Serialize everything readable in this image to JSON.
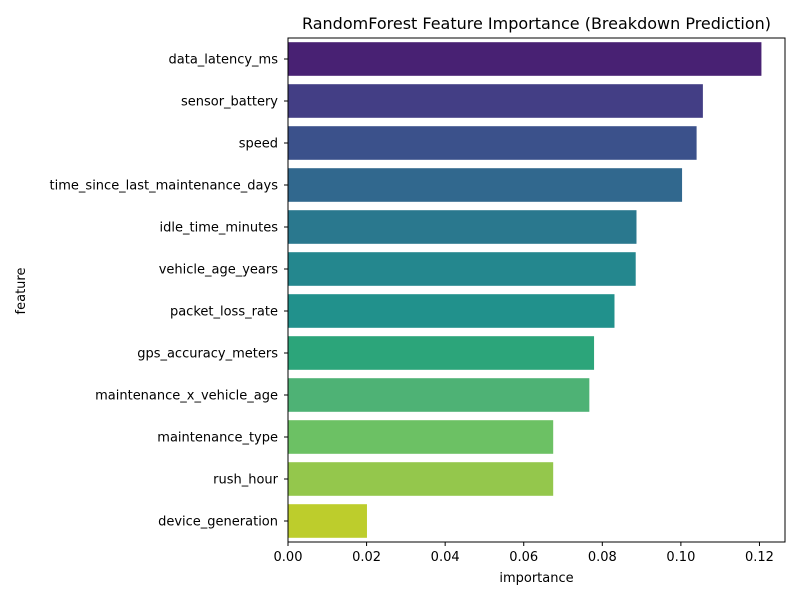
{
  "chart_data": {
    "type": "bar",
    "orientation": "horizontal",
    "title": "RandomForest Feature Importance (Breakdown Prediction)",
    "xlabel": "importance",
    "ylabel": "feature",
    "xlim": [
      0,
      0.1265
    ],
    "xticks": [
      0.0,
      0.02,
      0.04,
      0.06,
      0.08,
      0.1,
      0.12
    ],
    "xtick_labels": [
      "0.00",
      "0.02",
      "0.04",
      "0.06",
      "0.08",
      "0.10",
      "0.12"
    ],
    "grid": false,
    "categories": [
      "data_latency_ms",
      "sensor_battery",
      "speed",
      "time_since_last_maintenance_days",
      "idle_time_minutes",
      "vehicle_age_years",
      "packet_loss_rate",
      "gps_accuracy_meters",
      "maintenance_x_vehicle_age",
      "maintenance_type",
      "rush_hour",
      "device_generation"
    ],
    "values": [
      0.1205,
      0.1056,
      0.104,
      0.1003,
      0.0887,
      0.0885,
      0.0831,
      0.0779,
      0.0767,
      0.0675,
      0.0675,
      0.0201
    ],
    "colors": [
      "#482173",
      "#433e85",
      "#3b518b",
      "#31688e",
      "#2a788e",
      "#24878e",
      "#21918c",
      "#2ca57a",
      "#4eb275",
      "#6cc164",
      "#94c74c",
      "#bdcd2c"
    ]
  }
}
